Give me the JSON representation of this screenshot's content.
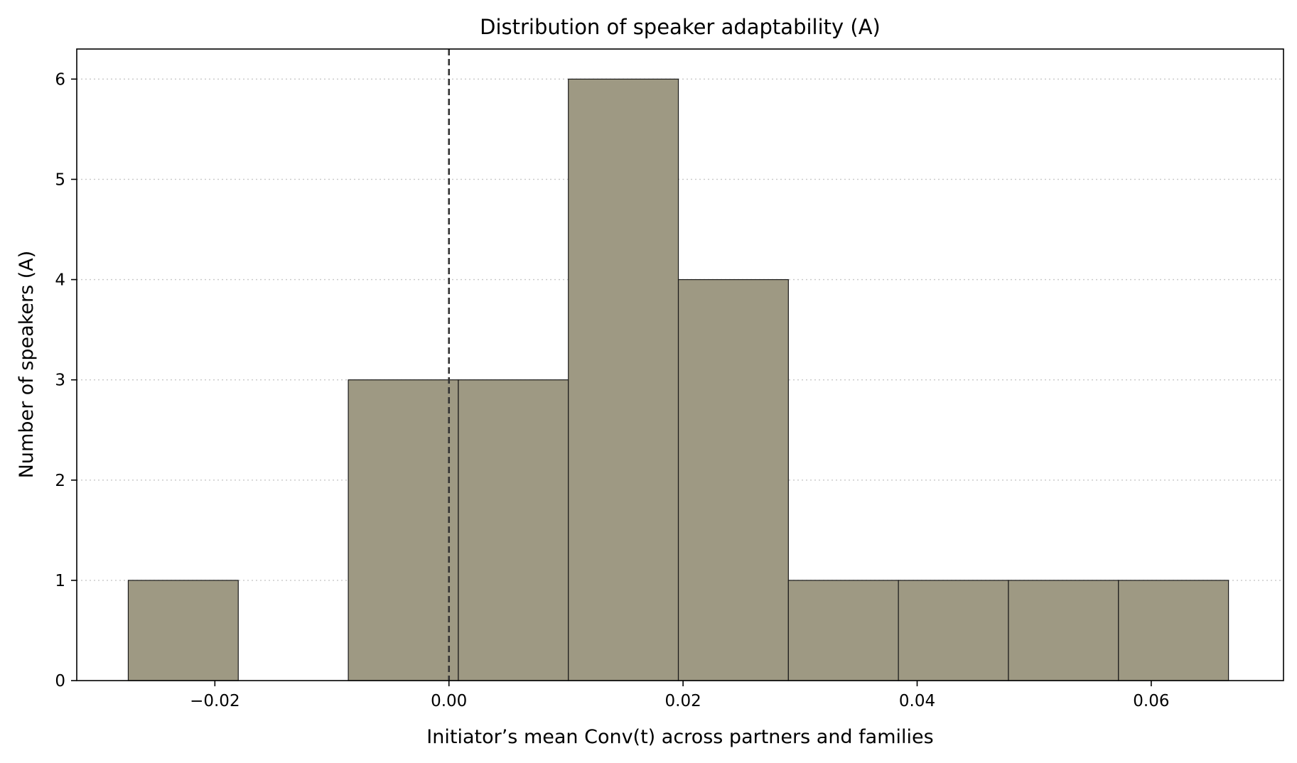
{
  "chart_data": {
    "type": "bar",
    "title": "Distribution of speaker adaptability (A)",
    "xlabel": "Initiator’s mean Conv(t) across partners and families",
    "ylabel": "Number of speakers (A)",
    "xlim": [
      -0.0318,
      0.0713
    ],
    "ylim": [
      0,
      6.3
    ],
    "xticks": [
      -0.02,
      0.0,
      0.02,
      0.04,
      0.06
    ],
    "xtick_labels": [
      "−0.02",
      "0.00",
      "0.02",
      "0.04",
      "0.06"
    ],
    "yticks": [
      0,
      1,
      2,
      3,
      4,
      5,
      6
    ],
    "ytick_labels": [
      "0",
      "1",
      "2",
      "3",
      "4",
      "5",
      "6"
    ],
    "grid": "y, dotted",
    "bar_color": "#9e9983",
    "edge_color": "#1a1a1a",
    "reference_line": {
      "x": 0.0,
      "style": "dashed",
      "color": "#333333"
    },
    "bins": [
      {
        "left": -0.0274,
        "right": -0.018,
        "count": 1
      },
      {
        "left": -0.018,
        "right": -0.0086,
        "count": 0
      },
      {
        "left": -0.0086,
        "right": 0.0008,
        "count": 3
      },
      {
        "left": 0.0008,
        "right": 0.0102,
        "count": 3
      },
      {
        "left": 0.0102,
        "right": 0.0196,
        "count": 6
      },
      {
        "left": 0.0196,
        "right": 0.029,
        "count": 4
      },
      {
        "left": 0.029,
        "right": 0.0384,
        "count": 1
      },
      {
        "left": 0.0384,
        "right": 0.0478,
        "count": 1
      },
      {
        "left": 0.0478,
        "right": 0.0572,
        "count": 1
      },
      {
        "left": 0.0572,
        "right": 0.0666,
        "count": 1
      }
    ]
  }
}
